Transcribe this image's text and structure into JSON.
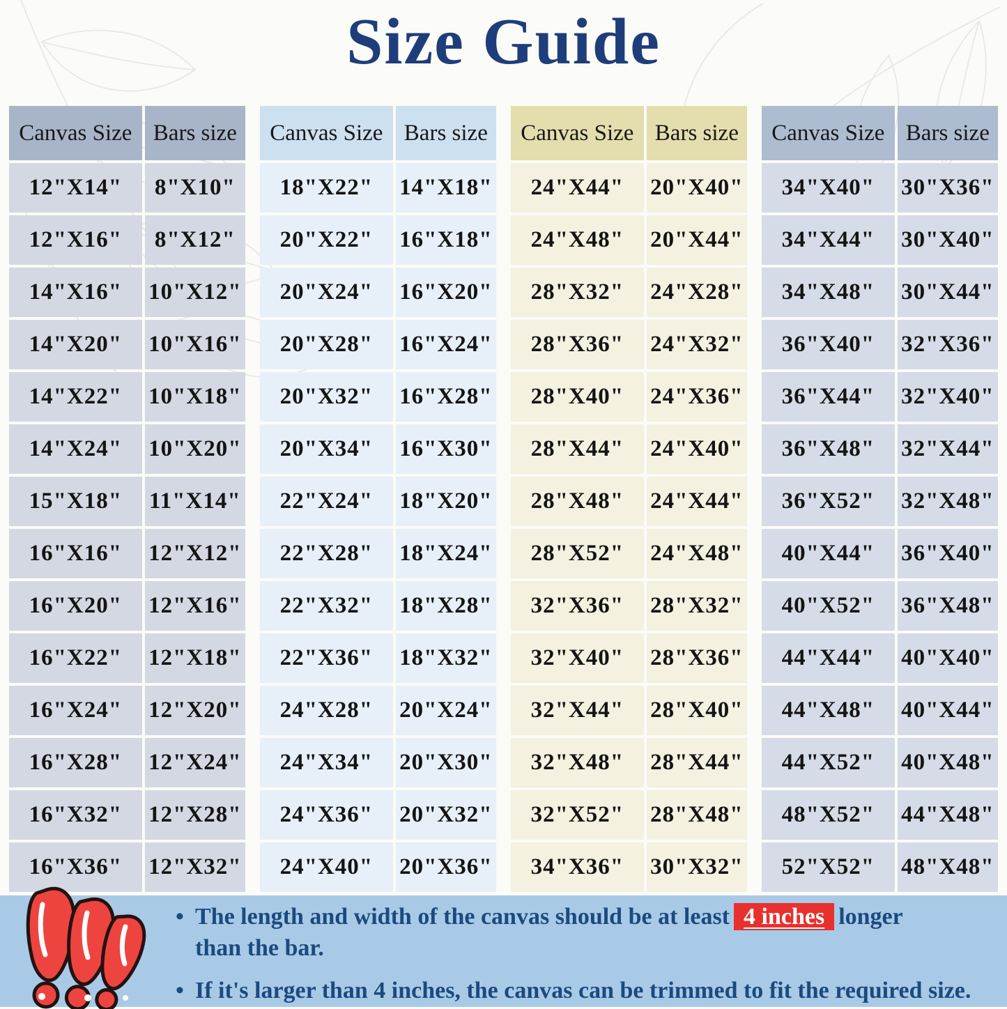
{
  "title": "Size Guide",
  "tables": [
    {
      "theme": "slate-gray",
      "header": [
        "Canvas Size",
        "Bars size"
      ],
      "rows": [
        [
          "12\"X14\"",
          "8\"X10\""
        ],
        [
          "12\"X16\"",
          "8\"X12\""
        ],
        [
          "14\"X16\"",
          "10\"X12\""
        ],
        [
          "14\"X20\"",
          "10\"X16\""
        ],
        [
          "14\"X22\"",
          "10\"X18\""
        ],
        [
          "14\"X24\"",
          "10\"X20\""
        ],
        [
          "15\"X18\"",
          "11\"X14\""
        ],
        [
          "16\"X16\"",
          "12\"X12\""
        ],
        [
          "16\"X20\"",
          "12\"X16\""
        ],
        [
          "16\"X22\"",
          "12\"X18\""
        ],
        [
          "16\"X24\"",
          "12\"X20\""
        ],
        [
          "16\"X28\"",
          "12\"X24\""
        ],
        [
          "16\"X32\"",
          "12\"X28\""
        ],
        [
          "16\"X36\"",
          "12\"X32\""
        ]
      ]
    },
    {
      "theme": "light-blue",
      "header": [
        "Canvas Size",
        "Bars size"
      ],
      "rows": [
        [
          "18\"X22\"",
          "14\"X18\""
        ],
        [
          "20\"X22\"",
          "16\"X18\""
        ],
        [
          "20\"X24\"",
          "16\"X20\""
        ],
        [
          "20\"X28\"",
          "16\"X24\""
        ],
        [
          "20\"X32\"",
          "16\"X28\""
        ],
        [
          "20\"X34\"",
          "16\"X30\""
        ],
        [
          "22\"X24\"",
          "18\"X20\""
        ],
        [
          "22\"X28\"",
          "18\"X24\""
        ],
        [
          "22\"X32\"",
          "18\"X28\""
        ],
        [
          "22\"X36\"",
          "18\"X32\""
        ],
        [
          "24\"X28\"",
          "20\"X24\""
        ],
        [
          "24\"X34\"",
          "20\"X30\""
        ],
        [
          "24\"X36\"",
          "20\"X32\""
        ],
        [
          "24\"X40\"",
          "20\"X36\""
        ]
      ]
    },
    {
      "theme": "khaki-cream",
      "header": [
        "Canvas Size",
        "Bars size"
      ],
      "rows": [
        [
          "24\"X44\"",
          "20\"X40\""
        ],
        [
          "24\"X48\"",
          "20\"X44\""
        ],
        [
          "28\"X32\"",
          "24\"X28\""
        ],
        [
          "28\"X36\"",
          "24\"X32\""
        ],
        [
          "28\"X40\"",
          "24\"X36\""
        ],
        [
          "28\"X44\"",
          "24\"X40\""
        ],
        [
          "28\"X48\"",
          "24\"X44\""
        ],
        [
          "28\"X52\"",
          "24\"X48\""
        ],
        [
          "32\"X36\"",
          "28\"X32\""
        ],
        [
          "32\"X40\"",
          "28\"X36\""
        ],
        [
          "32\"X44\"",
          "28\"X40\""
        ],
        [
          "32\"X48\"",
          "28\"X44\""
        ],
        [
          "32\"X52\"",
          "28\"X48\""
        ],
        [
          "34\"X36\"",
          "30\"X32\""
        ]
      ]
    },
    {
      "theme": "blue-gray",
      "header": [
        "Canvas Size",
        "Bars size"
      ],
      "rows": [
        [
          "34\"X40\"",
          "30\"X36\""
        ],
        [
          "34\"X44\"",
          "30\"X40\""
        ],
        [
          "34\"X48\"",
          "30\"X44\""
        ],
        [
          "36\"X40\"",
          "32\"X36\""
        ],
        [
          "36\"X44\"",
          "32\"X40\""
        ],
        [
          "36\"X48\"",
          "32\"X44\""
        ],
        [
          "36\"X52\"",
          "32\"X48\""
        ],
        [
          "40\"X44\"",
          "36\"X40\""
        ],
        [
          "40\"X52\"",
          "36\"X48\""
        ],
        [
          "44\"X44\"",
          "40\"X40\""
        ],
        [
          "44\"X48\"",
          "40\"X44\""
        ],
        [
          "44\"X52\"",
          "40\"X48\""
        ],
        [
          "48\"X52\"",
          "44\"X48\""
        ],
        [
          "52\"X52\"",
          "48\"X48\""
        ]
      ]
    }
  ],
  "notes": {
    "bullet1_pre": "The length and width of the canvas should be at least",
    "bullet1_highlight": "4 inches",
    "bullet1_post": "longer",
    "bullet1_line2": "than the bar.",
    "bullet2": "If it's larger than 4 inches, the canvas can be trimmed to fit the required size.",
    "bullet_glyph": "•"
  },
  "colors": {
    "title_navy": "#1e3d7b",
    "note_navy": "#1c4a7e",
    "highlight_red": "#e8302e",
    "band_blue": "#a9cae7",
    "exclamation_red": "#ee3b35",
    "table1_header": "#a8b5c9",
    "table1_body": "#d4d8e3",
    "table2_header": "#cde0f0",
    "table2_body": "#e7f0f8",
    "table3_header": "#e4ddad",
    "table3_body": "#f4f1e0",
    "table4_header": "#adbcd1",
    "table4_body": "#d5dbe7"
  }
}
